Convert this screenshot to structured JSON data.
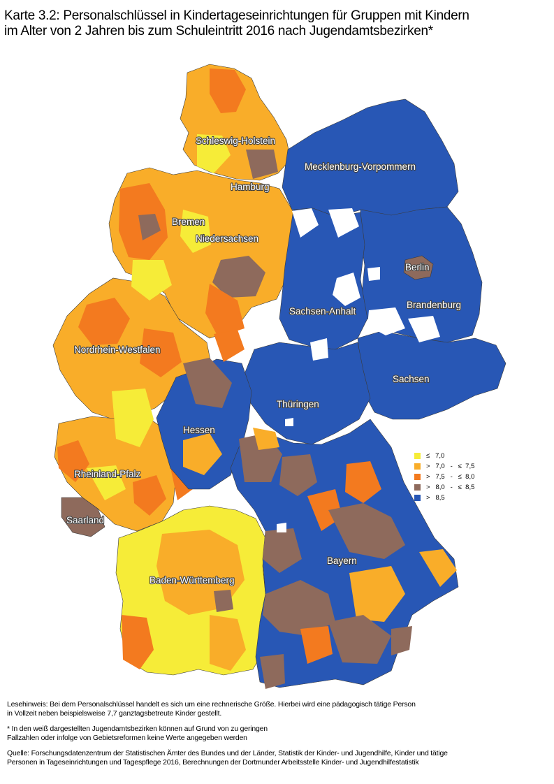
{
  "title": {
    "line1": "Karte 3.2: Personalschlüssel in Kindertageseinrichtungen für Gruppen mit Kindern",
    "line2": "im Alter von 2 Jahren bis zum Schuleintritt 2016 nach Jugendamtsbezirken*"
  },
  "regions": {
    "schleswig_holstein": "Schleswig-Holstein",
    "mecklenburg_vorpommern": "Mecklenburg-Vorpommern",
    "hamburg": "Hamburg",
    "bremen": "Bremen",
    "niedersachsen": "Niedersachsen",
    "berlin": "Berlin",
    "brandenburg": "Brandenburg",
    "sachsen_anhalt": "Sachsen-Anhalt",
    "nordrhein_westfalen": "Nordrhein-Westfalen",
    "sachsen": "Sachsen",
    "thueringen": "Thüringen",
    "hessen": "Hessen",
    "rheinland_pfalz": "Rheinland-Pfalz",
    "saarland": "Saarland",
    "bayern": "Bayern",
    "baden_wuerttemberg": "Baden-Württemberg"
  },
  "legend": [
    {
      "label": "≤   7,0",
      "color": "#f6ec38"
    },
    {
      "label": ">   7,0   -   ≤  7,5",
      "color": "#f9ad29"
    },
    {
      "label": ">   7,5   -   ≤  8,0",
      "color": "#f37a1f"
    },
    {
      "label": ">   8,0   -   ≤  8,5",
      "color": "#8e6a5c"
    },
    {
      "label": ">   8,5",
      "color": "#2857b5"
    }
  ],
  "notes": {
    "reading_hint": "Lesehinweis: Bei dem Personalschlüssel handelt es sich um eine rechnerische Größe. Hierbei wird eine pädagogisch tätige Person\nin Vollzeit neben beispielsweise 7,7 ganztagsbetreute Kinder gestellt.",
    "footnote": "* In den weiß dargestellten Jugendamtsbezirken können auf Grund von zu geringen\nFallzahlen oder infolge von Gebietsreformen keine Werte angegeben werden",
    "source": "Quelle: Forschungsdatenzentrum der Statistischen Ämter des Bundes und der Länder, Statistik der Kinder- und Jugendhilfe, Kinder und tätige\nPersonen in Tageseinrichtungen und Tagespflege 2016, Berechnungen der Dortmunder Arbeitsstelle Kinder- und Jugendhilfestatistik"
  },
  "colors": {
    "cat1": "#f6ec38",
    "cat2": "#f9ad29",
    "cat3": "#f37a1f",
    "cat4": "#8e6a5c",
    "cat5": "#2857b5",
    "no_data": "#ffffff"
  }
}
